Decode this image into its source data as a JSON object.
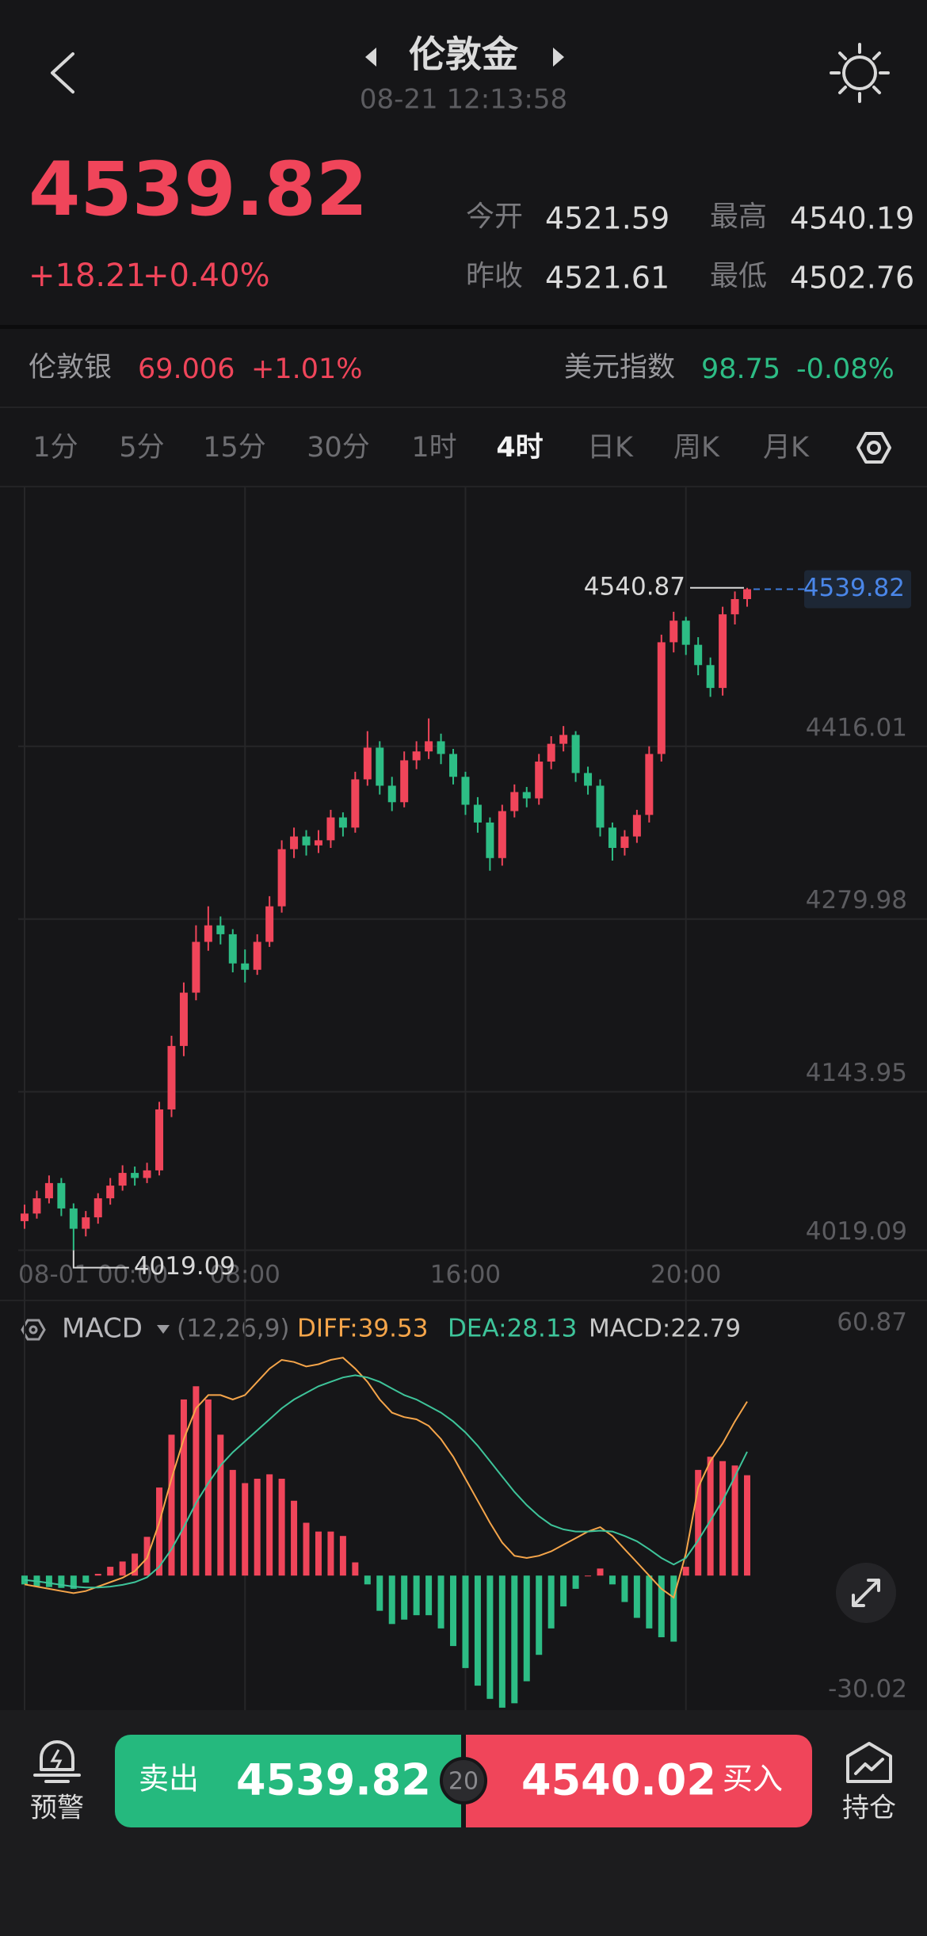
{
  "header": {
    "title": "伦敦金",
    "timestamp": "08-21 12:13:58"
  },
  "quote": {
    "price": "4539.82",
    "change": "+18.21",
    "change_percent": "+0.40%",
    "stats": [
      {
        "label": "今开",
        "value": "4521.59"
      },
      {
        "label": "最高",
        "value": "4540.19"
      },
      {
        "label": "昨收",
        "value": "4521.61"
      },
      {
        "label": "最低",
        "value": "4502.76"
      }
    ]
  },
  "related": [
    {
      "name": "伦敦银",
      "price": "69.006",
      "change": "+1.01%"
    },
    {
      "name": "美元指数",
      "price": "98.75",
      "change": "-0.08%"
    }
  ],
  "timeframes": {
    "items": [
      "1分",
      "5分",
      "15分",
      "30分",
      "1时",
      "4时",
      "日K",
      "周K",
      "月K"
    ],
    "active": 5
  },
  "chart_data": [
    {
      "type": "candlestick",
      "up_color": "#f0455a",
      "down_color": "#2dbd85",
      "grid": true,
      "categories": [
        "08-01 00:00",
        null,
        null,
        null,
        null,
        null,
        null,
        null,
        null,
        null,
        null,
        null,
        null,
        null,
        null,
        null,
        null,
        null,
        "08:00",
        null,
        null,
        null,
        null,
        null,
        null,
        null,
        null,
        null,
        null,
        null,
        null,
        null,
        null,
        null,
        null,
        null,
        "16:00",
        null,
        null,
        null,
        null,
        null,
        null,
        null,
        null,
        null,
        null,
        null,
        null,
        null,
        null,
        null,
        null,
        null,
        "20:00",
        null,
        null,
        null,
        null,
        null
      ],
      "open": [
        4042,
        4048,
        4060,
        4072,
        4052,
        4036,
        4045,
        4060,
        4070,
        4080,
        4076,
        4082,
        4130,
        4180,
        4222,
        4262,
        4275,
        4268,
        4245,
        4240,
        4262,
        4290,
        4335,
        4345,
        4338,
        4342,
        4360,
        4352,
        4390,
        4415,
        4385,
        4372,
        4405,
        4412,
        4420,
        4410,
        4392,
        4370,
        4356,
        4328,
        4365,
        4380,
        4375,
        4404,
        4418,
        4425,
        4395,
        4385,
        4352,
        4336,
        4345,
        4362,
        4410,
        4498,
        4515,
        4496,
        4480,
        4462,
        4520,
        4532
      ],
      "high": [
        4055,
        4066,
        4078,
        4076,
        4056,
        4050,
        4064,
        4076,
        4086,
        4085,
        4088,
        4136,
        4188,
        4230,
        4275,
        4290,
        4282,
        4272,
        4256,
        4268,
        4298,
        4342,
        4352,
        4350,
        4350,
        4366,
        4364,
        4396,
        4428,
        4420,
        4392,
        4412,
        4420,
        4438,
        4426,
        4414,
        4396,
        4376,
        4360,
        4370,
        4386,
        4384,
        4410,
        4424,
        4432,
        4428,
        4400,
        4390,
        4356,
        4350,
        4366,
        4416,
        4504,
        4522,
        4518,
        4502,
        4486,
        4526,
        4538,
        4540.87
      ],
      "low": [
        4036,
        4044,
        4056,
        4046,
        4019.09,
        4030,
        4040,
        4055,
        4066,
        4070,
        4072,
        4078,
        4124,
        4172,
        4216,
        4255,
        4260,
        4238,
        4230,
        4236,
        4258,
        4285,
        4328,
        4330,
        4332,
        4336,
        4345,
        4348,
        4385,
        4378,
        4365,
        4368,
        4398,
        4406,
        4402,
        4386,
        4362,
        4348,
        4318,
        4322,
        4360,
        4368,
        4370,
        4398,
        4412,
        4388,
        4378,
        4345,
        4326,
        4330,
        4340,
        4356,
        4404,
        4490,
        4488,
        4472,
        4455,
        4456,
        4512,
        4526
      ],
      "close": [
        4048,
        4060,
        4072,
        4052,
        4036,
        4045,
        4060,
        4070,
        4080,
        4076,
        4082,
        4130,
        4180,
        4222,
        4262,
        4275,
        4268,
        4245,
        4240,
        4262,
        4290,
        4335,
        4345,
        4338,
        4342,
        4360,
        4352,
        4390,
        4415,
        4385,
        4372,
        4405,
        4412,
        4420,
        4410,
        4392,
        4370,
        4356,
        4328,
        4365,
        4380,
        4375,
        4404,
        4418,
        4425,
        4395,
        4385,
        4352,
        4336,
        4345,
        4362,
        4410,
        4498,
        4515,
        4496,
        4480,
        4462,
        4520,
        4532,
        4539.82
      ],
      "ylim": [
        4017,
        4620
      ],
      "yticks": [
        4019.09,
        4143.95,
        4279.98,
        4416.01
      ]
    },
    {
      "type": "macd",
      "title": "MACD",
      "params": "(12,26,9)",
      "series": [
        {
          "legend_label": "DIFF:39.53",
          "color": "#f5a54a",
          "values": [
            -2,
            -2.5,
            -3,
            -3.5,
            -4,
            -3.5,
            -2.5,
            -1.5,
            -0.5,
            1,
            4,
            12,
            22,
            31,
            38,
            41,
            41,
            40,
            41,
            44,
            47,
            49,
            48.5,
            47.5,
            48,
            49,
            49.5,
            47,
            44,
            40,
            37,
            36,
            35.5,
            34,
            31,
            27,
            22,
            17,
            12,
            7.5,
            4.5,
            4,
            4.5,
            5.5,
            7,
            8.5,
            10,
            11,
            9,
            6,
            3,
            0,
            -3,
            -5,
            5,
            20,
            26,
            30,
            35,
            39.53
          ]
        },
        {
          "legend_label": "DEA:28.13",
          "color": "#3ec49a",
          "values": [
            -1,
            -1.3,
            -1.7,
            -2.1,
            -2.5,
            -2.7,
            -2.7,
            -2.5,
            -2.1,
            -1.5,
            -0.4,
            2,
            6,
            11,
            16.5,
            21,
            25,
            28,
            30.5,
            33,
            35.5,
            38,
            40,
            41.5,
            43,
            44,
            45,
            45.5,
            45,
            44,
            42.5,
            41,
            40,
            38.5,
            37,
            35,
            32.5,
            29.5,
            26,
            22.5,
            19,
            16,
            13.5,
            11.5,
            10.5,
            10,
            10,
            10.2,
            10,
            9,
            7.8,
            6,
            4,
            2.5,
            4,
            8,
            12.5,
            17,
            22.5,
            28.13
          ]
        },
        {
          "legend_label": "MACD:22.79",
          "color": "#c8c8c8",
          "up_color": "#f0455a",
          "down_color": "#2dbd85",
          "values": [
            -2,
            -2.4,
            -2.6,
            -2.8,
            -3,
            -1.6,
            0.4,
            2,
            3.2,
            5,
            8.8,
            20,
            32,
            40,
            43,
            40,
            32,
            24,
            21,
            22,
            23,
            22,
            17,
            12,
            10,
            10,
            9,
            3,
            -2,
            -8,
            -11,
            -10,
            -9,
            -9,
            -12,
            -16,
            -21,
            -25,
            -28,
            -30,
            -29,
            -24,
            -18,
            -12,
            -7,
            -3,
            0,
            1.6,
            -2,
            -6,
            -9.6,
            -12,
            -14,
            -15,
            2,
            24,
            27,
            26,
            25,
            22.79
          ]
        }
      ],
      "ylim": [
        -30.02,
        60.87
      ],
      "yticks": [
        -30.02,
        60.87
      ]
    }
  ],
  "trade_bar": {
    "alert": "预警",
    "sell_label": "卖出",
    "sell_price": "4539.82",
    "spread": "20",
    "buy_price": "4540.02",
    "buy_label": "买入",
    "positions": "持仓"
  }
}
